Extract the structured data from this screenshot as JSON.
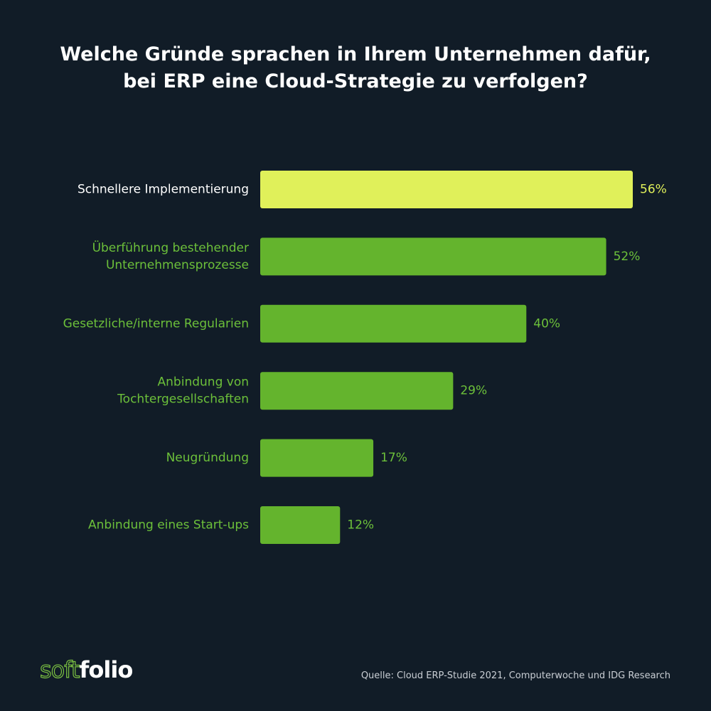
{
  "title_lines": [
    "Welche Gründe sprachen in Ihrem Unternehmen dafür,",
    "bei ERP eine Cloud-Strategie zu verfolgen?"
  ],
  "colors": {
    "background": "#111c27",
    "highlight_bar": "#e0f05a",
    "bar": "#64b42d",
    "highlight_label": "#ffffff",
    "label": "#6cc03a",
    "highlight_value": "#e0f05a",
    "value": "#6cc03a"
  },
  "chart_data": {
    "type": "bar",
    "orientation": "horizontal",
    "categories": [
      [
        "Schnellere Implementierung"
      ],
      [
        "Überführung bestehender",
        "Unternehmensprozesse"
      ],
      [
        "Gesetzliche/interne Regularien"
      ],
      [
        "Anbindung von",
        "Tochtergesellschaften"
      ],
      [
        "Neugründung"
      ],
      [
        "Anbindung eines Start-ups"
      ]
    ],
    "values": [
      56,
      52,
      40,
      29,
      17,
      12
    ],
    "value_labels": [
      "56%",
      "52%",
      "40%",
      "29%",
      "17%",
      "12%"
    ],
    "highlight_index": 0,
    "unit": "%",
    "xlim": [
      0,
      56
    ],
    "grid": false,
    "legend": "none"
  },
  "logo": {
    "soft": "soft",
    "folio": "folio"
  },
  "source": "Quelle: Cloud ERP-Studie 2021, Computerwoche und IDG Research"
}
